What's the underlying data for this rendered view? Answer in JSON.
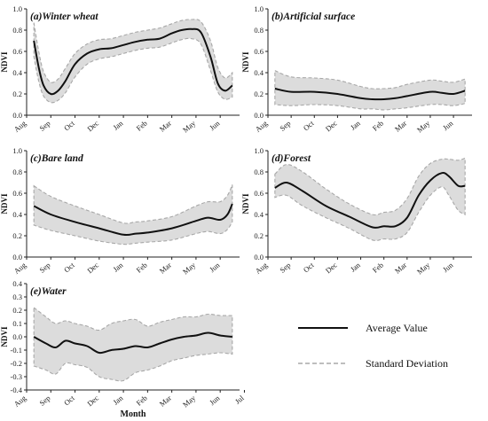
{
  "chart_data": [
    {
      "type": "area",
      "title": "(a)Winter wheat",
      "ylabel": "NDVI",
      "xlabel": "",
      "ylim": [
        0,
        1.0
      ],
      "yticks": [
        "0.0",
        "0.2",
        "0.4",
        "0.6",
        "0.8",
        "1.0"
      ],
      "xticks": [
        "Aug",
        "Sep",
        "Oct",
        "Dec",
        "Jan",
        "Feb",
        "Mar",
        "May",
        "Jun"
      ],
      "series": [
        {
          "x": [
            0.3,
            0.5,
            0.7,
            1.0,
            1.3,
            1.6,
            2.0,
            2.5,
            3.0,
            3.5,
            4.0,
            4.5,
            5.0,
            5.5,
            6.0,
            6.4,
            6.8,
            7.2,
            7.6,
            7.9,
            8.2,
            8.5
          ],
          "mean": [
            0.7,
            0.45,
            0.28,
            0.2,
            0.23,
            0.32,
            0.48,
            0.58,
            0.62,
            0.63,
            0.66,
            0.69,
            0.71,
            0.72,
            0.77,
            0.8,
            0.81,
            0.78,
            0.55,
            0.3,
            0.23,
            0.28
          ],
          "upper": [
            0.87,
            0.6,
            0.41,
            0.31,
            0.34,
            0.44,
            0.58,
            0.67,
            0.71,
            0.72,
            0.75,
            0.78,
            0.8,
            0.82,
            0.86,
            0.89,
            0.9,
            0.88,
            0.7,
            0.45,
            0.35,
            0.4
          ],
          "lower": [
            0.55,
            0.32,
            0.18,
            0.12,
            0.14,
            0.21,
            0.36,
            0.48,
            0.53,
            0.55,
            0.58,
            0.61,
            0.63,
            0.64,
            0.68,
            0.71,
            0.72,
            0.67,
            0.42,
            0.22,
            0.15,
            0.17
          ]
        }
      ]
    },
    {
      "type": "area",
      "title": "(b)Artificial surface",
      "ylabel": "NDVI",
      "xlabel": "",
      "ylim": [
        0,
        1.0
      ],
      "yticks": [
        "0.0",
        "0.2",
        "0.4",
        "0.6",
        "0.8",
        "1.0"
      ],
      "xticks": [
        "Aug",
        "Sep",
        "Oct",
        "Dec",
        "Jan",
        "Feb",
        "Mar",
        "May",
        "Jun"
      ],
      "series": [
        {
          "x": [
            0.3,
            1.0,
            2.0,
            3.0,
            4.0,
            4.5,
            5.0,
            5.5,
            6.0,
            7.0,
            7.5,
            8.0,
            8.5
          ],
          "mean": [
            0.25,
            0.22,
            0.22,
            0.2,
            0.16,
            0.15,
            0.15,
            0.16,
            0.18,
            0.22,
            0.21,
            0.2,
            0.23
          ],
          "upper": [
            0.42,
            0.36,
            0.35,
            0.33,
            0.27,
            0.25,
            0.25,
            0.26,
            0.29,
            0.33,
            0.32,
            0.31,
            0.34
          ],
          "lower": [
            0.1,
            0.09,
            0.1,
            0.09,
            0.06,
            0.06,
            0.05,
            0.06,
            0.07,
            0.1,
            0.1,
            0.09,
            0.11
          ]
        }
      ]
    },
    {
      "type": "area",
      "title": "(c)Bare land",
      "ylabel": "NDVI",
      "xlabel": "",
      "ylim": [
        0,
        1.0
      ],
      "yticks": [
        "0.0",
        "0.2",
        "0.4",
        "0.6",
        "0.8",
        "1.0"
      ],
      "xticks": [
        "Aug",
        "Sep",
        "Oct",
        "Dec",
        "Jan",
        "Feb",
        "Mar",
        "May",
        "Jun"
      ],
      "series": [
        {
          "x": [
            0.3,
            1.0,
            2.0,
            3.0,
            4.0,
            4.5,
            5.0,
            6.0,
            7.0,
            7.5,
            8.0,
            8.3,
            8.5
          ],
          "mean": [
            0.48,
            0.4,
            0.33,
            0.27,
            0.21,
            0.22,
            0.23,
            0.27,
            0.34,
            0.37,
            0.35,
            0.4,
            0.5
          ],
          "upper": [
            0.67,
            0.57,
            0.48,
            0.4,
            0.32,
            0.33,
            0.34,
            0.38,
            0.48,
            0.52,
            0.52,
            0.58,
            0.68
          ],
          "lower": [
            0.3,
            0.25,
            0.2,
            0.15,
            0.12,
            0.13,
            0.14,
            0.16,
            0.22,
            0.24,
            0.22,
            0.26,
            0.33
          ]
        }
      ]
    },
    {
      "type": "area",
      "title": "(d)Forest",
      "ylabel": "NDVI",
      "xlabel": "",
      "ylim": [
        0,
        1.0
      ],
      "yticks": [
        "0.0",
        "0.2",
        "0.4",
        "0.6",
        "0.8",
        "1.0"
      ],
      "xticks": [
        "Aug",
        "Sep",
        "Oct",
        "Dec",
        "Jan",
        "Feb",
        "Mar",
        "May",
        "Jun"
      ],
      "series": [
        {
          "x": [
            0.3,
            0.8,
            1.5,
            2.5,
            3.5,
            4.5,
            5.0,
            5.5,
            6.0,
            6.5,
            7.0,
            7.5,
            7.8,
            8.2,
            8.5
          ],
          "mean": [
            0.65,
            0.7,
            0.62,
            0.48,
            0.38,
            0.28,
            0.29,
            0.29,
            0.37,
            0.58,
            0.72,
            0.79,
            0.76,
            0.67,
            0.67
          ],
          "upper": [
            0.78,
            0.87,
            0.8,
            0.64,
            0.5,
            0.4,
            0.42,
            0.44,
            0.55,
            0.76,
            0.88,
            0.92,
            0.92,
            0.91,
            0.93
          ],
          "lower": [
            0.56,
            0.58,
            0.48,
            0.37,
            0.27,
            0.16,
            0.17,
            0.17,
            0.23,
            0.42,
            0.58,
            0.66,
            0.58,
            0.44,
            0.4
          ]
        }
      ]
    },
    {
      "type": "area",
      "title": "(e)Water",
      "ylabel": "NDVI",
      "xlabel": "Month",
      "ylim": [
        -0.4,
        0.4
      ],
      "yticks": [
        "-0.4",
        "-0.3",
        "-0.2",
        "-0.1",
        "0.0",
        "0.1",
        "0.2",
        "0.3",
        "0.4"
      ],
      "xticks": [
        "Aug",
        "Sep",
        "Oct",
        "Dec",
        "Jan",
        "Feb",
        "Mar",
        "May",
        "Jun",
        "Jul"
      ],
      "series": [
        {
          "x": [
            0.3,
            0.8,
            1.2,
            1.6,
            2.0,
            2.5,
            3.0,
            3.5,
            4.0,
            4.5,
            5.0,
            5.5,
            6.0,
            6.5,
            7.0,
            7.5,
            8.0,
            8.5
          ],
          "mean": [
            0.0,
            -0.05,
            -0.08,
            -0.03,
            -0.05,
            -0.07,
            -0.12,
            -0.1,
            -0.09,
            -0.07,
            -0.08,
            -0.05,
            -0.02,
            0.0,
            0.01,
            0.03,
            0.01,
            0.0
          ],
          "upper": [
            0.22,
            0.15,
            0.1,
            0.12,
            0.1,
            0.08,
            0.05,
            0.1,
            0.12,
            0.13,
            0.08,
            0.11,
            0.13,
            0.15,
            0.15,
            0.17,
            0.16,
            0.16
          ],
          "lower": [
            -0.22,
            -0.25,
            -0.28,
            -0.2,
            -0.21,
            -0.23,
            -0.3,
            -0.32,
            -0.33,
            -0.27,
            -0.25,
            -0.22,
            -0.18,
            -0.16,
            -0.14,
            -0.13,
            -0.12,
            -0.13
          ]
        }
      ]
    }
  ],
  "legend": {
    "average_label": "Average Value",
    "std_label": "Standard Deviation"
  }
}
